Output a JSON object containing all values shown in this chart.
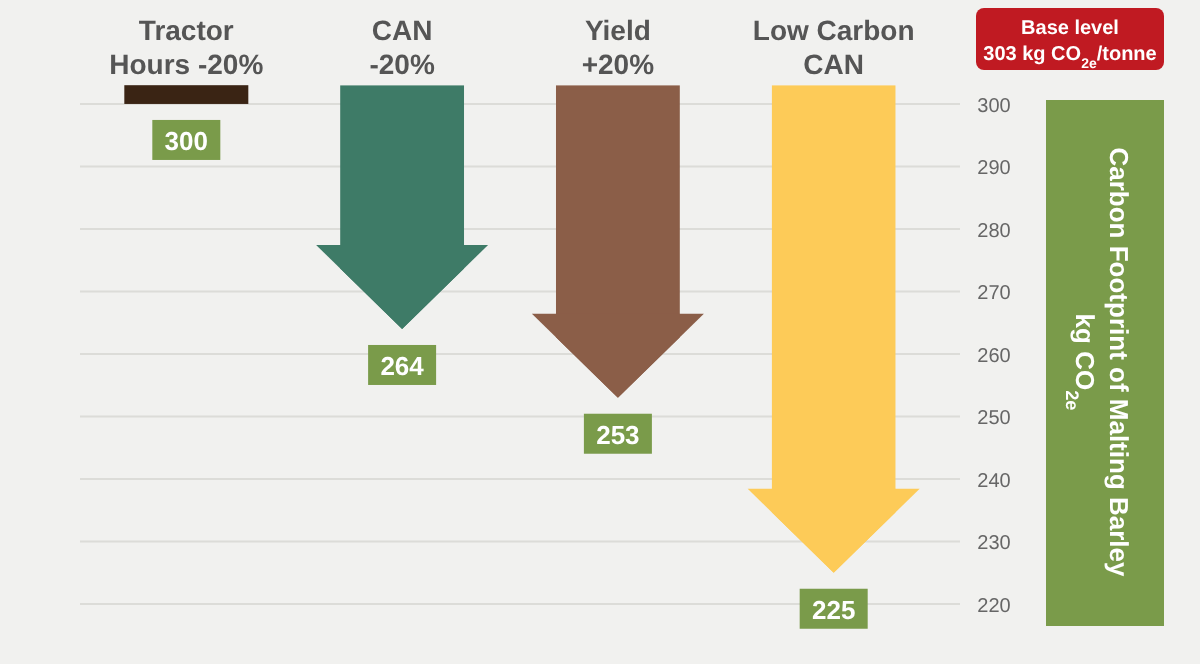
{
  "chart_data": {
    "type": "bar",
    "categories": [
      "Tractor\nHours -20%",
      "CAN\n-20%",
      "Yield\n+20%",
      "Low Carbon\nCAN"
    ],
    "base": [
      303,
      303,
      303,
      303
    ],
    "values": [
      -3,
      -39,
      -50,
      -78
    ],
    "colors": [
      "#3a2414",
      "#3e7b67",
      "#8b5e48",
      "#fdcb58"
    ],
    "value_labels": [
      "300",
      "264",
      "253",
      "225"
    ],
    "ylim": [
      216,
      303
    ],
    "yticks": [
      220,
      230,
      240,
      250,
      260,
      270,
      280,
      290,
      300
    ],
    "ylabel": "Carbon Footprint of Malting Barley\nkg CO$_{2e}$",
    "annotations": [
      "Base level\n303 kg CO$_{2e}$/tonne"
    ],
    "grid": "y"
  }
}
